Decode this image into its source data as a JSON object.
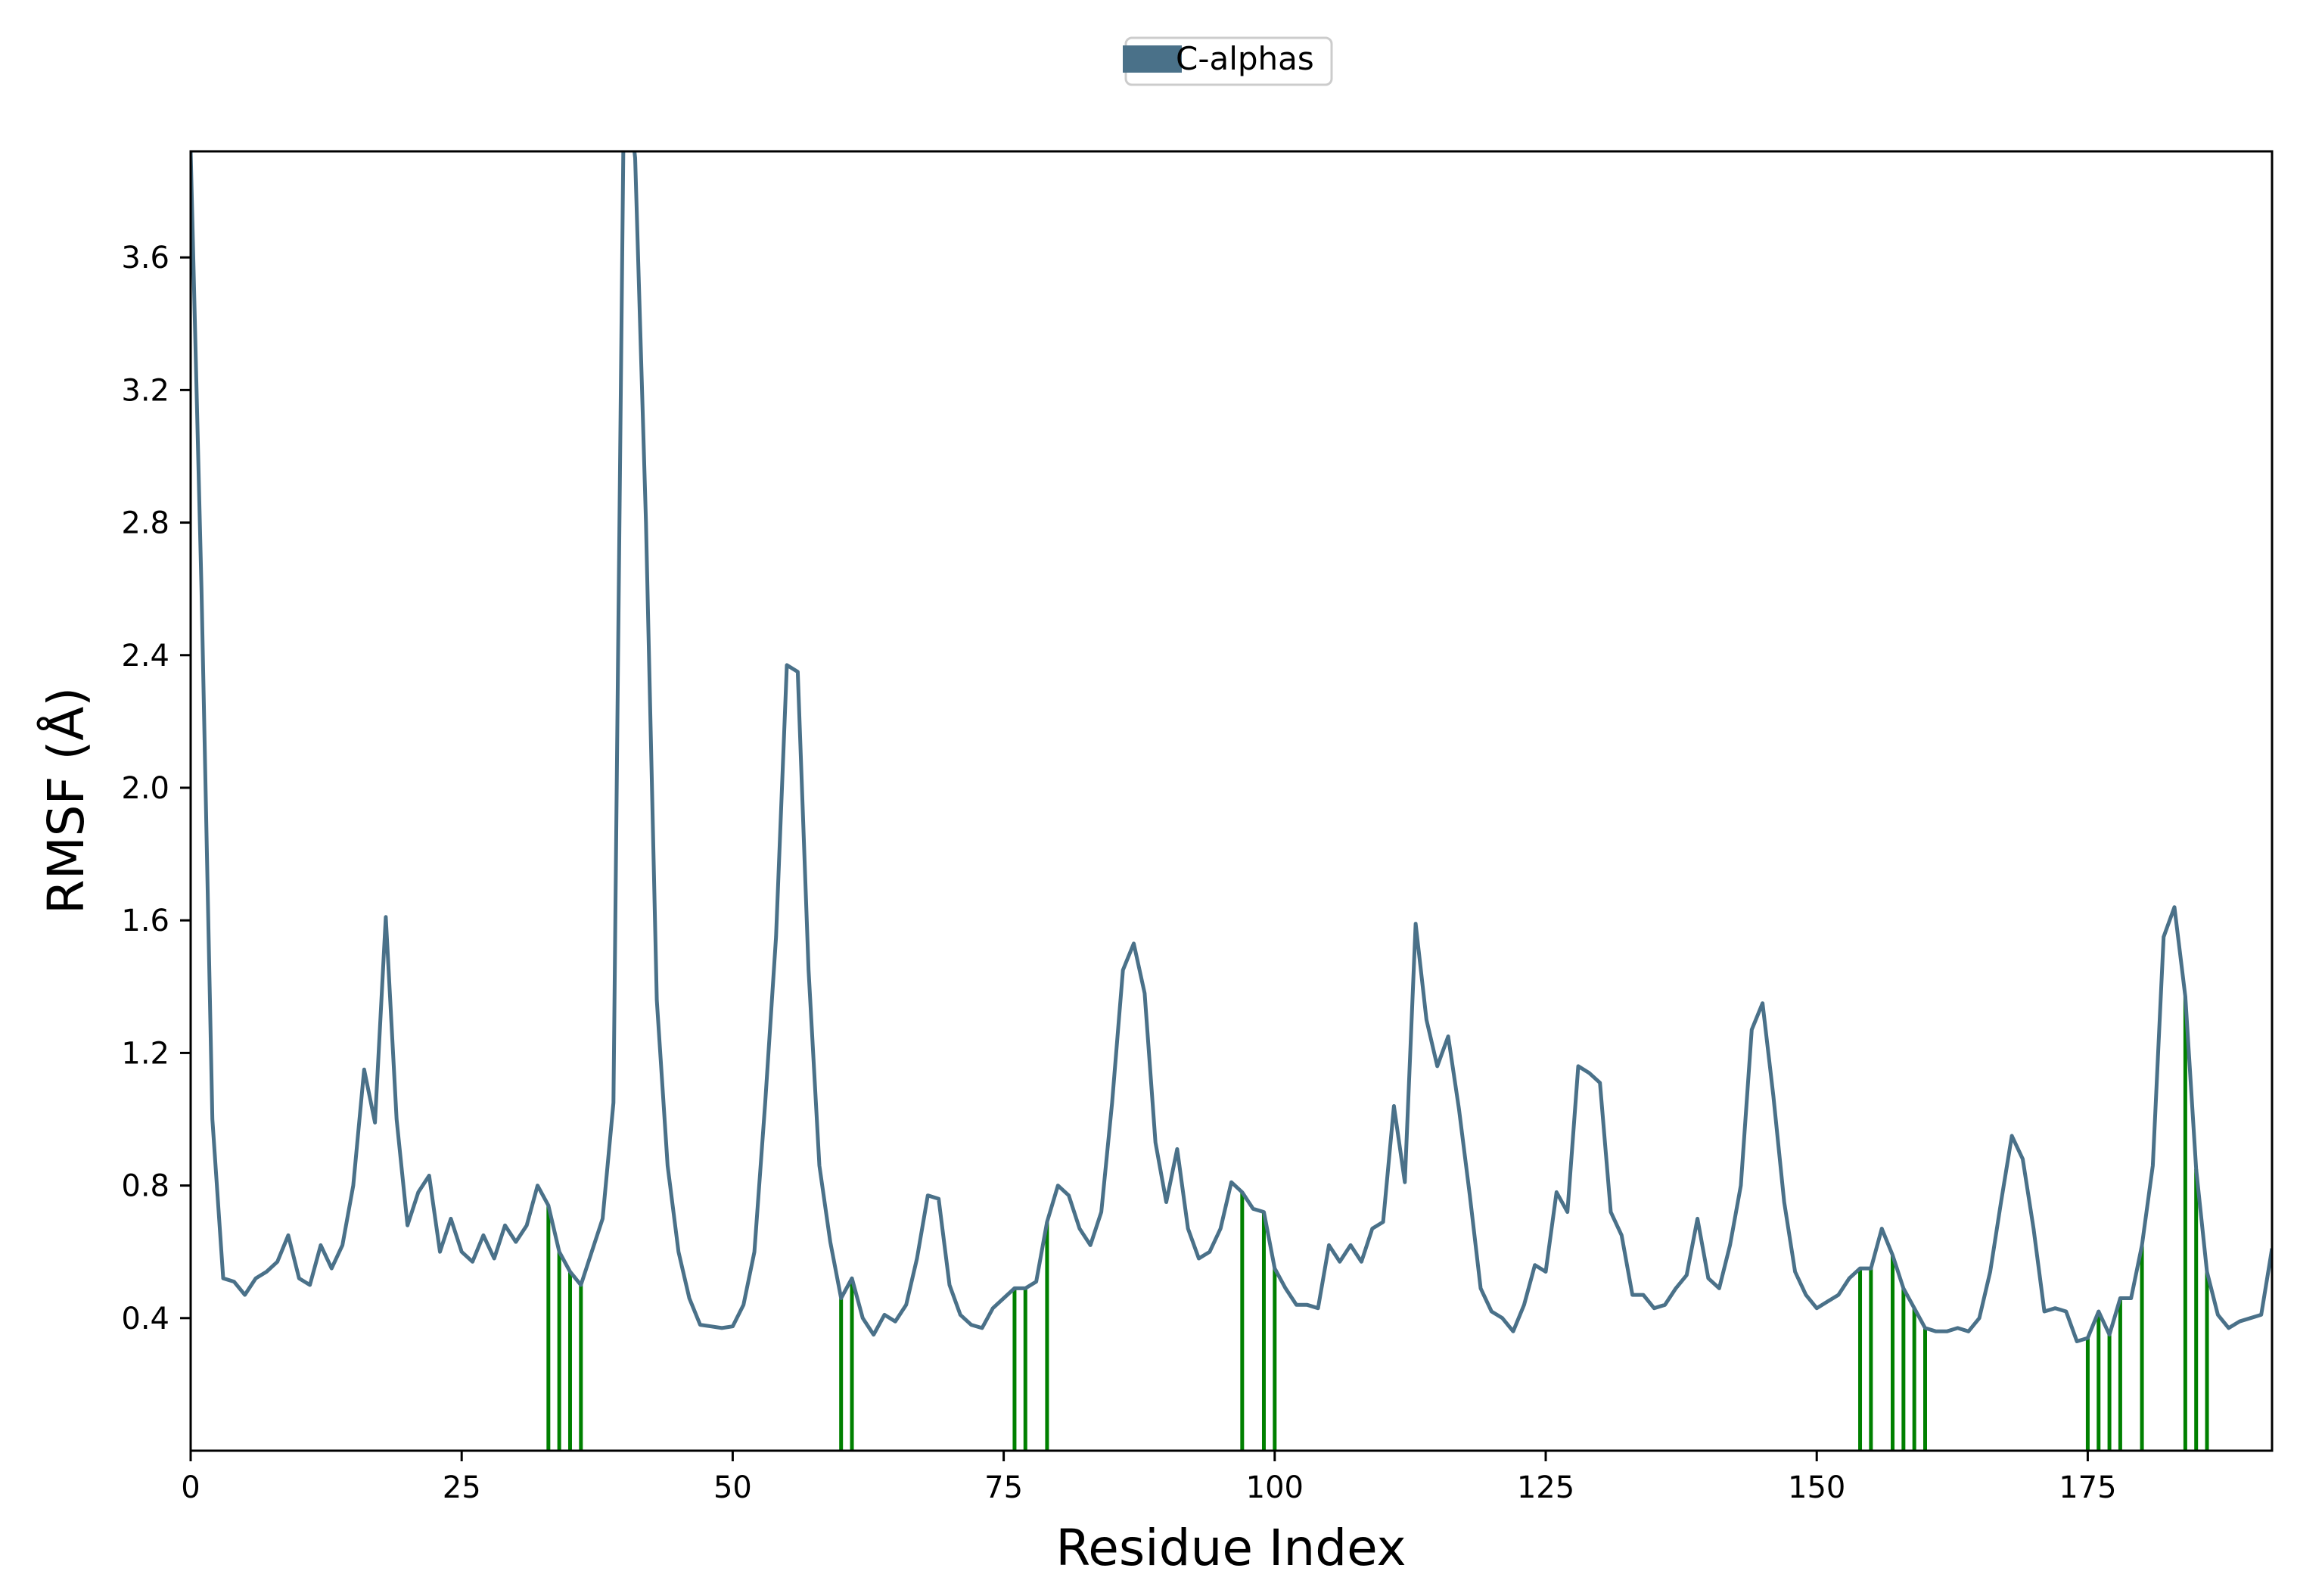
{
  "chart_data": {
    "type": "line",
    "title": "",
    "xlabel": "Residue Index",
    "ylabel": "RMSF (Å)",
    "xlim": [
      0,
      192
    ],
    "ylim": [
      0.0,
      3.92
    ],
    "x_ticks": [
      0,
      25,
      50,
      75,
      100,
      125,
      150,
      175
    ],
    "y_ticks": [
      0.4,
      0.8,
      1.2,
      1.6,
      2.0,
      2.4,
      2.8,
      3.2,
      3.6
    ],
    "x_tick_labels": [
      "0",
      "25",
      "50",
      "75",
      "100",
      "125",
      "150",
      "175"
    ],
    "y_tick_labels": [
      "0.4",
      "0.8",
      "1.2",
      "1.6",
      "2.0",
      "2.4",
      "2.8",
      "3.2",
      "3.6"
    ],
    "grid": false,
    "legend": {
      "placement": "top-center",
      "entries": [
        "C-alphas"
      ]
    },
    "colors": {
      "line": "#4a7189",
      "contacts": "#008000"
    },
    "series": [
      {
        "name": "C-alphas",
        "x": [
          0,
          1,
          2,
          3,
          4,
          5,
          6,
          7,
          8,
          9,
          10,
          11,
          12,
          13,
          14,
          15,
          16,
          17,
          18,
          19,
          20,
          21,
          22,
          23,
          24,
          25,
          26,
          27,
          28,
          29,
          30,
          31,
          32,
          33,
          34,
          35,
          36,
          37,
          38,
          39,
          40,
          41,
          42,
          43,
          44,
          45,
          46,
          47,
          48,
          49,
          50,
          51,
          52,
          53,
          54,
          55,
          56,
          57,
          58,
          59,
          60,
          61,
          62,
          63,
          64,
          65,
          66,
          67,
          68,
          69,
          70,
          71,
          72,
          73,
          74,
          75,
          76,
          77,
          78,
          79,
          80,
          81,
          82,
          83,
          84,
          85,
          86,
          87,
          88,
          89,
          90,
          91,
          92,
          93,
          94,
          95,
          96,
          97,
          98,
          99,
          100,
          101,
          102,
          103,
          104,
          105,
          106,
          107,
          108,
          109,
          110,
          111,
          112,
          113,
          114,
          115,
          116,
          117,
          118,
          119,
          120,
          121,
          122,
          123,
          124,
          125,
          126,
          127,
          128,
          129,
          130,
          131,
          132,
          133,
          134,
          135,
          136,
          137,
          138,
          139,
          140,
          141,
          142,
          143,
          144,
          145,
          146,
          147,
          148,
          149,
          150,
          151,
          152,
          153,
          154,
          155,
          156,
          157,
          158,
          159,
          160,
          161,
          162,
          163,
          164,
          165,
          166,
          167,
          168,
          169,
          170,
          171,
          172,
          173,
          174,
          175,
          176,
          177,
          178,
          179,
          180,
          181,
          182,
          183,
          184,
          185,
          186,
          187,
          188,
          189,
          190,
          191,
          192
        ],
        "y": [
          3.92,
          2.6,
          1.0,
          0.52,
          0.51,
          0.47,
          0.52,
          0.54,
          0.57,
          0.65,
          0.52,
          0.5,
          0.62,
          0.55,
          0.62,
          0.8,
          1.15,
          0.99,
          1.61,
          1.0,
          0.68,
          0.78,
          0.83,
          0.6,
          0.7,
          0.6,
          0.57,
          0.65,
          0.58,
          0.68,
          0.63,
          0.68,
          0.8,
          0.74,
          0.6,
          0.54,
          0.5,
          0.6,
          0.7,
          1.05,
          4.2,
          3.9,
          2.8,
          1.36,
          0.86,
          0.6,
          0.46,
          0.38,
          0.375,
          0.37,
          0.375,
          0.44,
          0.6,
          1.05,
          1.55,
          2.37,
          2.35,
          1.45,
          0.86,
          0.63,
          0.46,
          0.52,
          0.4,
          0.35,
          0.41,
          0.39,
          0.44,
          0.58,
          0.77,
          0.76,
          0.5,
          0.41,
          0.38,
          0.37,
          0.43,
          0.46,
          0.49,
          0.49,
          0.51,
          0.69,
          0.8,
          0.77,
          0.67,
          0.62,
          0.72,
          1.05,
          1.45,
          1.53,
          1.38,
          0.93,
          0.75,
          0.91,
          0.67,
          0.58,
          0.6,
          0.67,
          0.81,
          0.78,
          0.73,
          0.72,
          0.55,
          0.49,
          0.44,
          0.44,
          0.43,
          0.62,
          0.57,
          0.62,
          0.57,
          0.67,
          0.69,
          1.04,
          0.81,
          1.59,
          1.3,
          1.16,
          1.25,
          1.03,
          0.77,
          0.49,
          0.42,
          0.4,
          0.36,
          0.44,
          0.56,
          0.54,
          0.78,
          0.72,
          1.16,
          1.14,
          1.11,
          0.72,
          0.65,
          0.47,
          0.47,
          0.43,
          0.44,
          0.49,
          0.53,
          0.7,
          0.52,
          0.49,
          0.62,
          0.8,
          1.27,
          1.35,
          1.07,
          0.75,
          0.54,
          0.47,
          0.43,
          0.45,
          0.47,
          0.52,
          0.55,
          0.55,
          0.67,
          0.59,
          0.49,
          0.43,
          0.37,
          0.36,
          0.36,
          0.37,
          0.36,
          0.4,
          0.54,
          0.75,
          0.95,
          0.88,
          0.67,
          0.42,
          0.43,
          0.42,
          0.33,
          0.34,
          0.42,
          0.35,
          0.46,
          0.46,
          0.62,
          0.86,
          1.55,
          1.64,
          1.37,
          0.85,
          0.54,
          0.41,
          0.37,
          0.39,
          0.4,
          0.41,
          0.61
        ]
      }
    ],
    "contact_residues": [
      33,
      34,
      35,
      36,
      60,
      61,
      76,
      77,
      79,
      97,
      99,
      100,
      154,
      155,
      157,
      158,
      159,
      160,
      175,
      176,
      177,
      178,
      180,
      184,
      185,
      186
    ]
  }
}
